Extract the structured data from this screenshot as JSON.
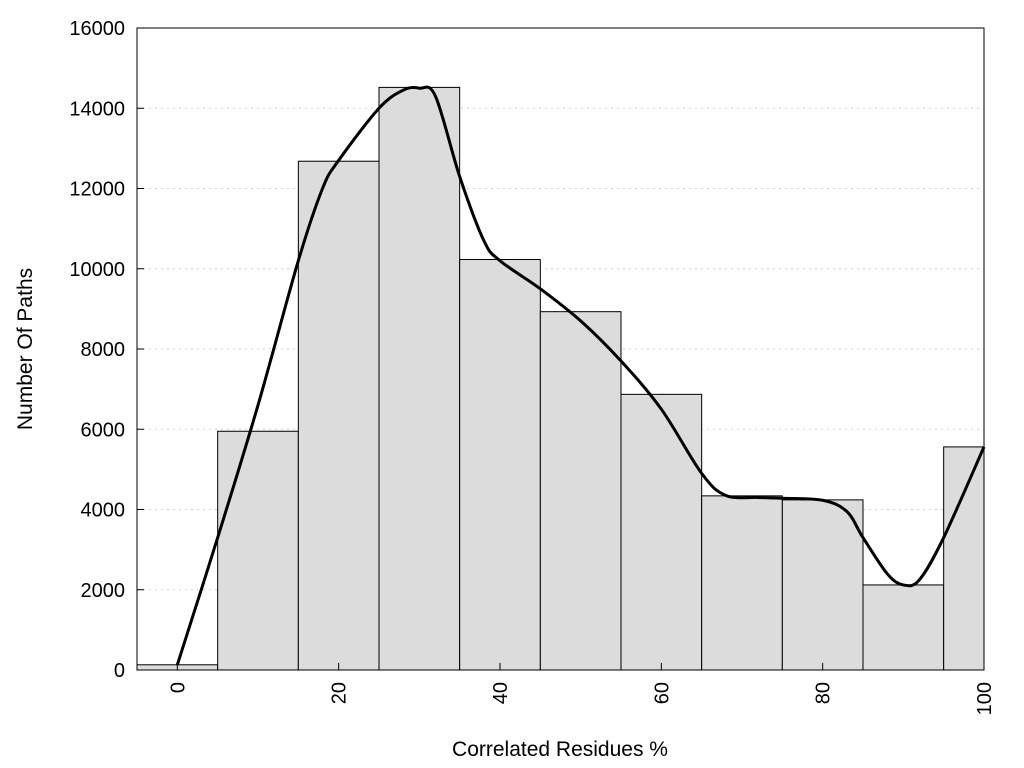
{
  "chart_data": {
    "type": "bar",
    "xlabel": "Correlated Residues %",
    "ylabel": "Number Of Paths",
    "ylim": [
      0,
      16000
    ],
    "xlim": [
      -5,
      100
    ],
    "grid": "horizontal dotted",
    "bar_width": 10,
    "x": [
      0,
      10,
      20,
      30,
      40,
      50,
      60,
      70,
      80,
      90,
      100
    ],
    "values": [
      130,
      5950,
      12680,
      14520,
      10230,
      8930,
      6870,
      4340,
      4240,
      2120,
      5560
    ],
    "y_ticks": [
      0,
      2000,
      4000,
      6000,
      8000,
      10000,
      12000,
      14000,
      16000
    ],
    "x_ticks": [
      0,
      20,
      40,
      60,
      80,
      100
    ],
    "curve": {
      "x": [
        0,
        5,
        10,
        15,
        18,
        20,
        25,
        28,
        30,
        32,
        35,
        38,
        40,
        45,
        50,
        55,
        60,
        65,
        68,
        72,
        75,
        80,
        83,
        85,
        88,
        90,
        92,
        95,
        100
      ],
      "y": [
        130,
        3300,
        6600,
        10200,
        12000,
        12700,
        14000,
        14450,
        14500,
        14300,
        12300,
        10700,
        10200,
        9500,
        8700,
        7700,
        6500,
        4900,
        4350,
        4300,
        4280,
        4230,
        3950,
        3300,
        2400,
        2120,
        2250,
        3300,
        5560
      ]
    }
  }
}
